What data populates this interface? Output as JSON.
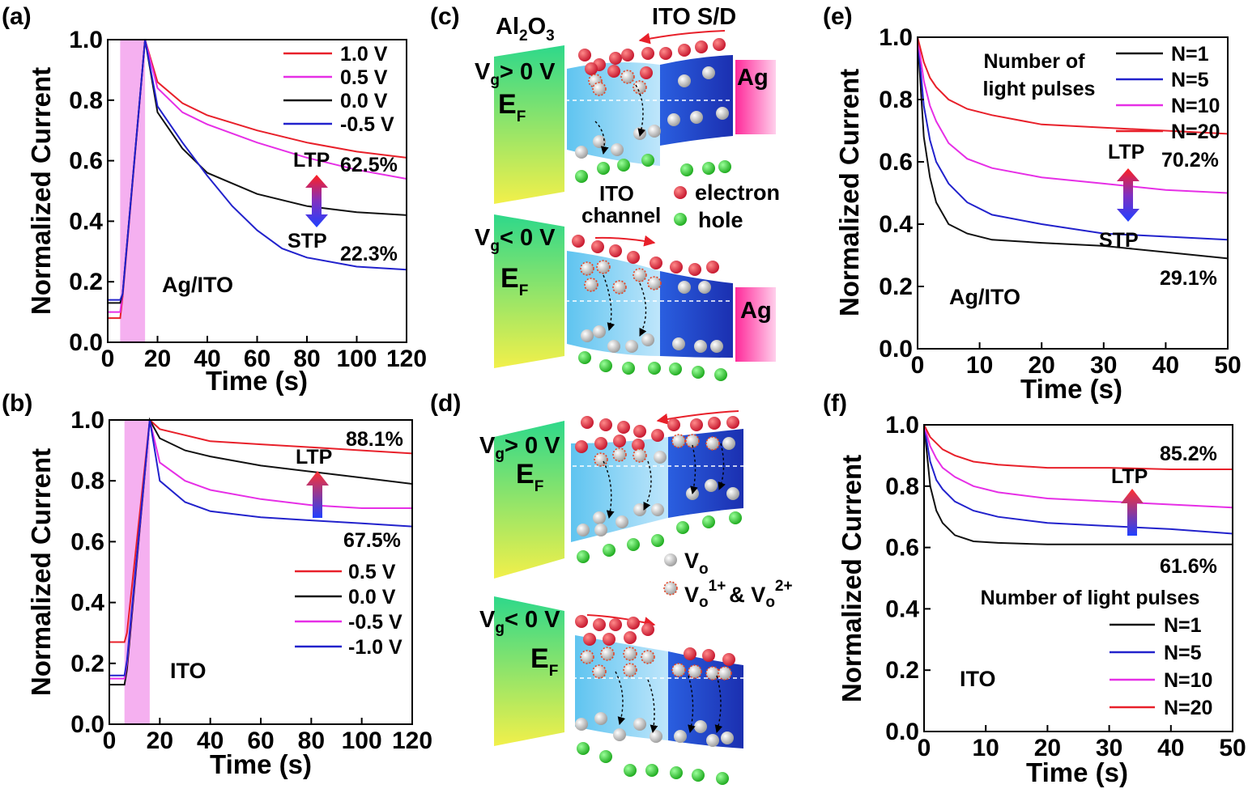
{
  "chart_data": [
    {
      "id": "a",
      "panel_label": "(a)",
      "type": "line",
      "xlabel": "Time (s)",
      "ylabel": "Normalized Current",
      "xlim": [
        0,
        120
      ],
      "ylim": [
        0,
        1
      ],
      "xticks": [
        "0",
        "20",
        "40",
        "60",
        "80",
        "100",
        "120"
      ],
      "yticks": [
        "0.0",
        "0.2",
        "0.4",
        "0.6",
        "0.8",
        "1.0"
      ],
      "pulse": [
        5,
        15
      ],
      "sample_label": "Ag/ITO",
      "legend_position": "top-right",
      "series": [
        {
          "name": "1.0 V",
          "color": "#e8202a",
          "x": [
            0,
            5,
            6,
            15,
            20,
            30,
            40,
            60,
            80,
            100,
            120
          ],
          "y": [
            0.08,
            0.08,
            0.15,
            1.0,
            0.86,
            0.79,
            0.75,
            0.7,
            0.66,
            0.63,
            0.61
          ]
        },
        {
          "name": "0.5 V",
          "color": "#e62fe6",
          "x": [
            0,
            5,
            6,
            15,
            20,
            30,
            40,
            60,
            80,
            100,
            120
          ],
          "y": [
            0.1,
            0.1,
            0.16,
            1.0,
            0.84,
            0.76,
            0.72,
            0.66,
            0.61,
            0.57,
            0.54
          ]
        },
        {
          "name": "0.0 V",
          "color": "#111111",
          "x": [
            0,
            5,
            6,
            15,
            20,
            30,
            40,
            60,
            80,
            100,
            120
          ],
          "y": [
            0.13,
            0.13,
            0.16,
            1.0,
            0.76,
            0.64,
            0.56,
            0.49,
            0.45,
            0.43,
            0.42
          ]
        },
        {
          "name": "-0.5 V",
          "color": "#2222cc",
          "x": [
            0,
            5,
            6,
            15,
            20,
            30,
            40,
            50,
            60,
            70,
            80,
            100,
            120
          ],
          "y": [
            0.14,
            0.14,
            0.16,
            1.0,
            0.78,
            0.66,
            0.55,
            0.45,
            0.37,
            0.31,
            0.28,
            0.25,
            0.24
          ]
        }
      ],
      "annotations": [
        "LTP",
        "STP",
        "62.5%",
        "22.3%"
      ]
    },
    {
      "id": "b",
      "panel_label": "(b)",
      "type": "line",
      "xlabel": "Time (s)",
      "ylabel": "Normalized Current",
      "xlim": [
        0,
        120
      ],
      "ylim": [
        0,
        1
      ],
      "xticks": [
        "0",
        "20",
        "40",
        "60",
        "80",
        "100",
        "120"
      ],
      "yticks": [
        "0.0",
        "0.2",
        "0.4",
        "0.6",
        "0.8",
        "1.0"
      ],
      "pulse": [
        6,
        16
      ],
      "sample_label": "ITO",
      "legend_position": "bottom-right",
      "series": [
        {
          "name": "0.5 V",
          "color": "#e8202a",
          "x": [
            0,
            6,
            7,
            16,
            20,
            30,
            40,
            60,
            80,
            100,
            120
          ],
          "y": [
            0.27,
            0.27,
            0.3,
            1.0,
            0.97,
            0.95,
            0.93,
            0.92,
            0.91,
            0.9,
            0.89
          ]
        },
        {
          "name": "0.0 V",
          "color": "#111111",
          "x": [
            0,
            6,
            7,
            16,
            20,
            30,
            40,
            60,
            80,
            100,
            120
          ],
          "y": [
            0.13,
            0.13,
            0.18,
            1.0,
            0.94,
            0.9,
            0.88,
            0.85,
            0.83,
            0.81,
            0.79
          ]
        },
        {
          "name": "-0.5 V",
          "color": "#e62fe6",
          "x": [
            0,
            6,
            7,
            16,
            20,
            30,
            40,
            60,
            80,
            100,
            120
          ],
          "y": [
            0.15,
            0.15,
            0.2,
            1.0,
            0.86,
            0.8,
            0.77,
            0.74,
            0.72,
            0.71,
            0.71
          ]
        },
        {
          "name": "-1.0 V",
          "color": "#2222cc",
          "x": [
            0,
            6,
            7,
            16,
            20,
            30,
            40,
            60,
            80,
            100,
            120
          ],
          "y": [
            0.16,
            0.16,
            0.21,
            1.0,
            0.8,
            0.73,
            0.7,
            0.68,
            0.67,
            0.66,
            0.65
          ]
        }
      ],
      "annotations": [
        "LTP",
        "88.1%",
        "67.5%"
      ]
    },
    {
      "id": "e",
      "panel_label": "(e)",
      "type": "line",
      "xlabel": "Time (s)",
      "ylabel": "Normalized Current",
      "xlim": [
        0,
        50
      ],
      "ylim": [
        0,
        1
      ],
      "xticks": [
        "0",
        "10",
        "20",
        "30",
        "40",
        "50"
      ],
      "yticks": [
        "0.0",
        "0.2",
        "0.4",
        "0.6",
        "0.8",
        "1.0"
      ],
      "sample_label": "Ag/ITO",
      "legend_title": "Number of light pulses",
      "legend_position": "top-right",
      "series": [
        {
          "name": "N=1",
          "color": "#111111",
          "x": [
            0,
            1,
            2,
            3,
            5,
            8,
            12,
            20,
            30,
            40,
            50
          ],
          "y": [
            1.0,
            0.68,
            0.55,
            0.47,
            0.4,
            0.37,
            0.35,
            0.34,
            0.33,
            0.31,
            0.29
          ]
        },
        {
          "name": "N=5",
          "color": "#2222cc",
          "x": [
            0,
            1,
            2,
            3,
            5,
            8,
            12,
            20,
            30,
            40,
            50
          ],
          "y": [
            1.0,
            0.78,
            0.67,
            0.6,
            0.53,
            0.47,
            0.43,
            0.4,
            0.37,
            0.36,
            0.35
          ]
        },
        {
          "name": "N=10",
          "color": "#e62fe6",
          "x": [
            0,
            1,
            2,
            3,
            5,
            8,
            12,
            20,
            30,
            40,
            50
          ],
          "y": [
            1.0,
            0.86,
            0.78,
            0.73,
            0.66,
            0.61,
            0.58,
            0.55,
            0.53,
            0.51,
            0.5
          ]
        },
        {
          "name": "N=20",
          "color": "#e8202a",
          "x": [
            0,
            1,
            2,
            3,
            5,
            8,
            12,
            20,
            30,
            40,
            50
          ],
          "y": [
            1.0,
            0.92,
            0.87,
            0.84,
            0.8,
            0.77,
            0.75,
            0.72,
            0.71,
            0.7,
            0.69
          ]
        }
      ],
      "annotations": [
        "LTP",
        "STP",
        "70.2%",
        "29.1%"
      ]
    },
    {
      "id": "f",
      "panel_label": "(f)",
      "type": "line",
      "xlabel": "Time (s)",
      "ylabel": "Normalized Current",
      "xlim": [
        0,
        50
      ],
      "ylim": [
        0,
        1
      ],
      "xticks": [
        "0",
        "10",
        "20",
        "30",
        "40",
        "50"
      ],
      "yticks": [
        "0.0",
        "0.2",
        "0.4",
        "0.6",
        "0.8",
        "1.0"
      ],
      "sample_label": "ITO",
      "legend_title": "Number of light pulses",
      "legend_position": "bottom-right",
      "series": [
        {
          "name": "N=1",
          "color": "#111111",
          "x": [
            0,
            1,
            2,
            3,
            5,
            8,
            12,
            20,
            30,
            40,
            50
          ],
          "y": [
            1.0,
            0.8,
            0.72,
            0.68,
            0.64,
            0.62,
            0.615,
            0.61,
            0.61,
            0.61,
            0.61
          ]
        },
        {
          "name": "N=5",
          "color": "#2222cc",
          "x": [
            0,
            1,
            2,
            3,
            5,
            8,
            12,
            20,
            30,
            40,
            50
          ],
          "y": [
            1.0,
            0.88,
            0.82,
            0.79,
            0.75,
            0.72,
            0.7,
            0.68,
            0.67,
            0.66,
            0.645
          ]
        },
        {
          "name": "N=10",
          "color": "#e62fe6",
          "x": [
            0,
            1,
            2,
            3,
            5,
            8,
            12,
            20,
            30,
            40,
            50
          ],
          "y": [
            1.0,
            0.93,
            0.89,
            0.86,
            0.83,
            0.8,
            0.78,
            0.76,
            0.75,
            0.74,
            0.73
          ]
        },
        {
          "name": "N=20",
          "color": "#e8202a",
          "x": [
            0,
            1,
            2,
            3,
            5,
            8,
            12,
            20,
            30,
            40,
            50
          ],
          "y": [
            1.0,
            0.96,
            0.94,
            0.92,
            0.9,
            0.88,
            0.87,
            0.86,
            0.86,
            0.855,
            0.855
          ]
        }
      ],
      "annotations": [
        "LTP",
        "85.2%",
        "61.6%"
      ]
    }
  ],
  "diagram": {
    "c_label": "(c)",
    "d_label": "(d)",
    "al2o3_main": "Al",
    "al2o3_sub2": "2",
    "al2o3_O": "O",
    "al2o3_sub3": "3",
    "ito_sd": "ITO S/D",
    "vg": "V",
    "vg_sub": "g",
    "vg_pos": "> 0 V",
    "vg_neg": "< 0 V",
    "ef": "E",
    "ef_sub": "F",
    "ag": "Ag",
    "ito_channel_1": "ITO",
    "ito_channel_2": "channel",
    "electron": "electron",
    "hole": "hole",
    "vo": "V",
    "vo_sub": "o",
    "vo_ion_sup1": "1+",
    "vo_ion_amp": "& V",
    "vo_ion_sup2": "2+"
  }
}
